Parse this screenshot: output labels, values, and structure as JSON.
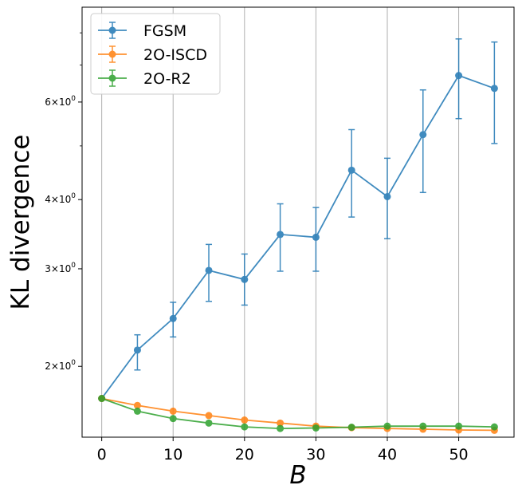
{
  "chart_data": {
    "type": "line",
    "yscale": "log",
    "xlabel": "B",
    "ylabel": "KL divergence",
    "xlim": [
      -2.75,
      57.75
    ],
    "ylim": [
      1.49,
      8.9
    ],
    "x_ticks": [
      0,
      10,
      20,
      30,
      40,
      50
    ],
    "x_tick_labels": [
      "0",
      "10",
      "20",
      "30",
      "40",
      "50"
    ],
    "y_major_ticks": [
      {
        "value": 2,
        "base": "2",
        "mult": "×",
        "power": "10",
        "exp": "0"
      },
      {
        "value": 3,
        "base": "3",
        "mult": "×",
        "power": "10",
        "exp": "0"
      },
      {
        "value": 4,
        "base": "4",
        "mult": "×",
        "power": "10",
        "exp": "0"
      },
      {
        "value": 6,
        "base": "6",
        "mult": "×",
        "power": "10",
        "exp": "0"
      }
    ],
    "y_minor_ticks": [
      5,
      7,
      8
    ],
    "grid": "x-major-vertical",
    "legend_position": "top-left",
    "x": [
      0,
      5,
      10,
      15,
      20,
      25,
      30,
      35,
      40,
      45,
      50,
      55
    ],
    "series": [
      {
        "name": "FGSM",
        "color": "#1f77b4",
        "values": [
          1.75,
          2.14,
          2.44,
          2.98,
          2.87,
          3.46,
          3.42,
          4.52,
          4.05,
          5.24,
          6.7,
          6.35
        ],
        "err_low": [
          1.75,
          1.97,
          2.26,
          2.62,
          2.58,
          2.97,
          2.97,
          3.72,
          3.4,
          4.12,
          5.6,
          5.05
        ],
        "err_high": [
          1.75,
          2.28,
          2.61,
          3.32,
          3.19,
          3.93,
          3.87,
          5.35,
          4.75,
          6.31,
          7.8,
          7.7
        ]
      },
      {
        "name": "2O-ISCD",
        "color": "#ff7f0e",
        "values": [
          1.75,
          1.7,
          1.66,
          1.63,
          1.6,
          1.58,
          1.56,
          1.55,
          1.545,
          1.54,
          1.535,
          1.533
        ],
        "err_low": [
          1.75,
          1.7,
          1.66,
          1.63,
          1.6,
          1.58,
          1.56,
          1.55,
          1.545,
          1.54,
          1.535,
          1.533
        ],
        "err_high": [
          1.75,
          1.7,
          1.66,
          1.63,
          1.6,
          1.58,
          1.56,
          1.55,
          1.545,
          1.54,
          1.535,
          1.533
        ]
      },
      {
        "name": "2O-R2",
        "color": "#2ca02c",
        "values": [
          1.75,
          1.66,
          1.61,
          1.58,
          1.555,
          1.545,
          1.548,
          1.553,
          1.56,
          1.56,
          1.56,
          1.555
        ],
        "err_low": [
          1.75,
          1.66,
          1.61,
          1.58,
          1.555,
          1.545,
          1.548,
          1.553,
          1.56,
          1.56,
          1.56,
          1.555
        ],
        "err_high": [
          1.75,
          1.66,
          1.61,
          1.58,
          1.555,
          1.545,
          1.548,
          1.553,
          1.56,
          1.56,
          1.56,
          1.555
        ]
      }
    ]
  }
}
